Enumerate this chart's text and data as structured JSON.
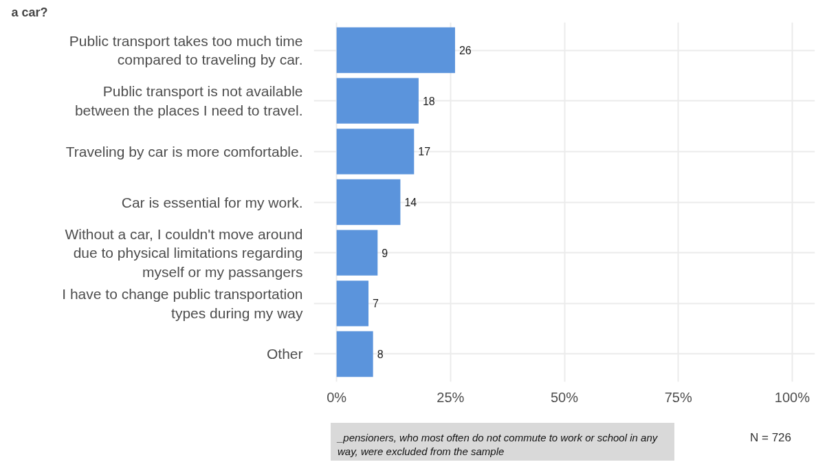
{
  "chart_data": {
    "type": "bar",
    "orientation": "horizontal",
    "title": "a car?",
    "categories": [
      "Public transport takes too much time compared to traveling by car.",
      "Public transport is not available between the places I need to travel.",
      "Traveling by car is more comfortable.",
      "Car is essential for my work.",
      "Without a car, I couldn't move around due to physical limitations regarding myself or my passangers",
      "I have to change public transportation types during my way",
      "Other"
    ],
    "values": [
      26,
      18,
      17,
      14,
      9,
      7,
      8
    ],
    "color": "#5b94dc",
    "xlim": [
      -5,
      105
    ],
    "xticks": [
      {
        "value": 0,
        "label": "0%"
      },
      {
        "value": 25,
        "label": "25%"
      },
      {
        "value": 50,
        "label": "50%"
      },
      {
        "value": 75,
        "label": "75%"
      },
      {
        "value": 100,
        "label": "100%"
      }
    ],
    "grid": true,
    "data_labels": true,
    "annotations": [
      "_pensioners, who most often do not commute to work or school in any way, were excluded from the sample",
      "N = 726"
    ]
  }
}
